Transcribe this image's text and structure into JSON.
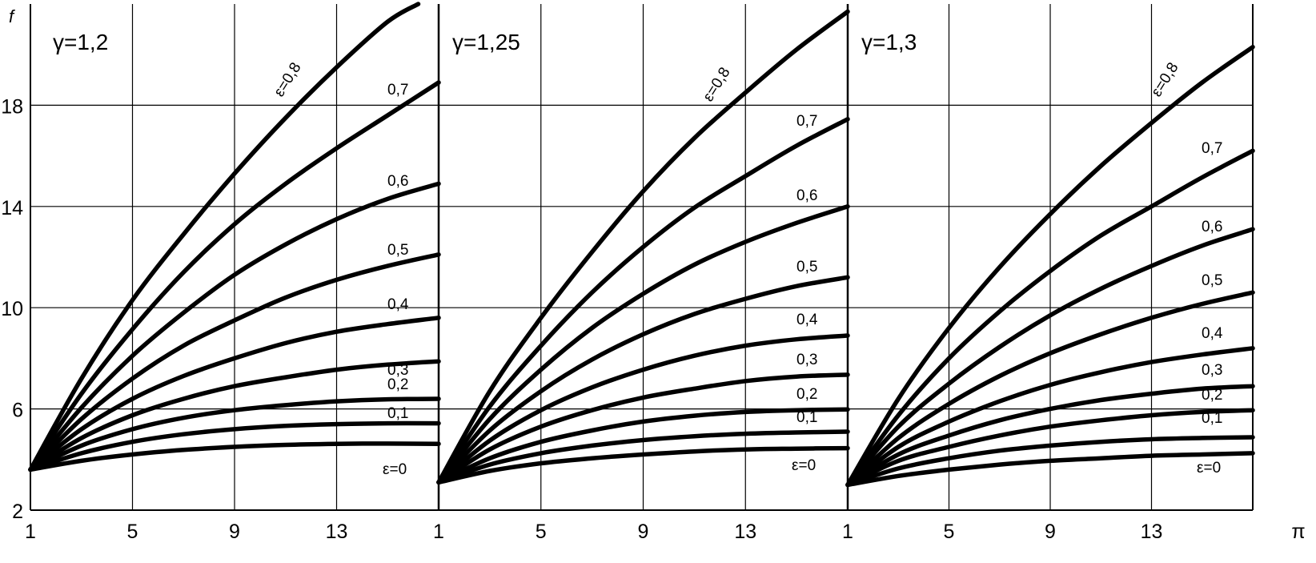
{
  "chart_data": {
    "type": "line",
    "ylabel": "f",
    "xlabel": "π",
    "ylim": [
      2,
      22
    ],
    "y_ticks": [
      2,
      6,
      10,
      14,
      18
    ],
    "x_ticks": [
      1,
      5,
      9,
      13
    ],
    "grid": true,
    "panels": [
      {
        "title": "γ=1,2",
        "xlim": [
          1,
          17
        ],
        "series": [
          {
            "name": "ε=0",
            "label": "ε=0",
            "x": [
              1,
              3,
              5,
              7,
              9,
              11,
              13,
              15,
              17
            ],
            "y": [
              3.6,
              3.95,
              4.2,
              4.38,
              4.5,
              4.58,
              4.62,
              4.63,
              4.62
            ]
          },
          {
            "name": "ε=0,1",
            "label": "0,1",
            "x": [
              1,
              3,
              5,
              7,
              9,
              11,
              13,
              15,
              17
            ],
            "y": [
              3.6,
              4.25,
              4.7,
              5.0,
              5.2,
              5.33,
              5.4,
              5.43,
              5.43
            ]
          },
          {
            "name": "ε=0,2",
            "label": "0,2",
            "x": [
              1,
              3,
              5,
              7,
              9,
              11,
              13,
              15,
              17
            ],
            "y": [
              3.6,
              4.55,
              5.2,
              5.65,
              5.95,
              6.15,
              6.3,
              6.38,
              6.4
            ]
          },
          {
            "name": "ε=0,3",
            "label": "0,3",
            "x": [
              1,
              3,
              5,
              7,
              9,
              11,
              13,
              15,
              17
            ],
            "y": [
              3.6,
              4.85,
              5.75,
              6.4,
              6.9,
              7.25,
              7.55,
              7.75,
              7.88
            ]
          },
          {
            "name": "ε=0,4",
            "label": "0,4",
            "x": [
              1,
              3,
              5,
              7,
              9,
              11,
              13,
              15,
              17
            ],
            "y": [
              3.6,
              5.2,
              6.4,
              7.3,
              8.0,
              8.6,
              9.05,
              9.35,
              9.6
            ]
          },
          {
            "name": "ε=0,5",
            "label": "0,5",
            "x": [
              1,
              3,
              5,
              7,
              9,
              11,
              13,
              15,
              17
            ],
            "y": [
              3.6,
              5.6,
              7.2,
              8.5,
              9.5,
              10.4,
              11.1,
              11.65,
              12.1
            ]
          },
          {
            "name": "ε=0,6",
            "label": "0,6",
            "x": [
              1,
              3,
              5,
              7,
              9,
              11,
              13,
              15,
              17
            ],
            "y": [
              3.6,
              6.05,
              8.1,
              9.8,
              11.3,
              12.5,
              13.5,
              14.3,
              14.9
            ]
          },
          {
            "name": "ε=0,7",
            "label": "0,7",
            "x": [
              1,
              3,
              5,
              7,
              9,
              11,
              13,
              15,
              17
            ],
            "y": [
              3.6,
              6.6,
              9.15,
              11.4,
              13.3,
              14.9,
              16.3,
              17.6,
              18.9
            ]
          },
          {
            "name": "ε=0,8",
            "label": "ε=0,8",
            "x": [
              1,
              3,
              5,
              7,
              9,
              11,
              13,
              15,
              16.2
            ],
            "y": [
              3.6,
              7.2,
              10.3,
              12.9,
              15.3,
              17.5,
              19.5,
              21.3,
              22
            ]
          }
        ]
      },
      {
        "title": "γ=1,25",
        "xlim": [
          1,
          17
        ],
        "series": [
          {
            "name": "ε=0",
            "label": "ε=0",
            "x": [
              1,
              3,
              5,
              7,
              9,
              11,
              13,
              15,
              17
            ],
            "y": [
              3.1,
              3.55,
              3.85,
              4.05,
              4.2,
              4.32,
              4.4,
              4.43,
              4.45
            ]
          },
          {
            "name": "ε=0,1",
            "label": "0,1",
            "x": [
              1,
              3,
              5,
              7,
              9,
              11,
              13,
              15,
              17
            ],
            "y": [
              3.1,
              3.8,
              4.25,
              4.55,
              4.77,
              4.92,
              5.02,
              5.07,
              5.1
            ]
          },
          {
            "name": "ε=0,2",
            "label": "0,2",
            "x": [
              1,
              3,
              5,
              7,
              9,
              11,
              13,
              15,
              17
            ],
            "y": [
              3.1,
              4.05,
              4.7,
              5.15,
              5.5,
              5.73,
              5.88,
              5.95,
              5.98
            ]
          },
          {
            "name": "ε=0,3",
            "label": "0,3",
            "x": [
              1,
              3,
              5,
              7,
              9,
              11,
              13,
              15,
              17
            ],
            "y": [
              3.1,
              4.4,
              5.3,
              5.95,
              6.45,
              6.8,
              7.1,
              7.28,
              7.35
            ]
          },
          {
            "name": "ε=0,4",
            "label": "0,4",
            "x": [
              1,
              3,
              5,
              7,
              9,
              11,
              13,
              15,
              17
            ],
            "y": [
              3.1,
              4.75,
              5.95,
              6.85,
              7.55,
              8.1,
              8.5,
              8.75,
              8.9
            ]
          },
          {
            "name": "ε=0,5",
            "label": "0,5",
            "x": [
              1,
              3,
              5,
              7,
              9,
              11,
              13,
              15,
              17
            ],
            "y": [
              3.1,
              5.15,
              6.7,
              7.95,
              8.95,
              9.75,
              10.35,
              10.85,
              11.2
            ]
          },
          {
            "name": "ε=0,6",
            "label": "0,6",
            "x": [
              1,
              3,
              5,
              7,
              9,
              11,
              13,
              15,
              17
            ],
            "y": [
              3.1,
              5.6,
              7.55,
              9.2,
              10.55,
              11.7,
              12.6,
              13.35,
              14.0
            ]
          },
          {
            "name": "ε=0,7",
            "label": "0,7",
            "x": [
              1,
              3,
              5,
              7,
              9,
              11,
              13,
              15,
              17
            ],
            "y": [
              3.1,
              6.1,
              8.5,
              10.6,
              12.4,
              13.95,
              15.2,
              16.4,
              17.45
            ]
          },
          {
            "name": "ε=0,8",
            "label": "ε=0,8",
            "x": [
              1,
              3,
              5,
              7,
              9,
              11,
              13,
              15,
              17
            ],
            "y": [
              3.1,
              6.7,
              9.6,
              12.2,
              14.6,
              16.7,
              18.5,
              20.2,
              21.7
            ]
          }
        ]
      },
      {
        "title": "γ=1,3",
        "xlim": [
          1,
          17
        ],
        "series": [
          {
            "name": "ε=0",
            "label": "ε=0",
            "x": [
              1,
              3,
              5,
              7,
              9,
              11,
              13,
              15,
              17
            ],
            "y": [
              3.0,
              3.35,
              3.6,
              3.8,
              3.95,
              4.05,
              4.15,
              4.2,
              4.25
            ]
          },
          {
            "name": "ε=0,1",
            "label": "0,1",
            "x": [
              1,
              3,
              5,
              7,
              9,
              11,
              13,
              15,
              17
            ],
            "y": [
              3.0,
              3.65,
              4.05,
              4.35,
              4.55,
              4.7,
              4.8,
              4.85,
              4.88
            ]
          },
          {
            "name": "ε=0,2",
            "label": "0,2",
            "x": [
              1,
              3,
              5,
              7,
              9,
              11,
              13,
              15,
              17
            ],
            "y": [
              3.0,
              3.95,
              4.5,
              4.95,
              5.3,
              5.55,
              5.75,
              5.88,
              5.95
            ]
          },
          {
            "name": "ε=0,3",
            "label": "0,3",
            "x": [
              1,
              3,
              5,
              7,
              9,
              11,
              13,
              15,
              17
            ],
            "y": [
              3.0,
              4.2,
              4.95,
              5.55,
              6.0,
              6.35,
              6.6,
              6.8,
              6.9
            ]
          },
          {
            "name": "ε=0,4",
            "label": "0,4",
            "x": [
              1,
              3,
              5,
              7,
              9,
              11,
              13,
              15,
              17
            ],
            "y": [
              3.0,
              4.5,
              5.5,
              6.3,
              6.95,
              7.45,
              7.85,
              8.15,
              8.4
            ]
          },
          {
            "name": "ε=0,5",
            "label": "0,5",
            "x": [
              1,
              3,
              5,
              7,
              9,
              11,
              13,
              15,
              17
            ],
            "y": [
              3.0,
              4.85,
              6.2,
              7.3,
              8.2,
              8.95,
              9.6,
              10.15,
              10.6
            ]
          },
          {
            "name": "ε=0,6",
            "label": "0,6",
            "x": [
              1,
              3,
              5,
              7,
              9,
              11,
              13,
              15,
              17
            ],
            "y": [
              3.0,
              5.3,
              7.0,
              8.45,
              9.7,
              10.75,
              11.65,
              12.45,
              13.1
            ]
          },
          {
            "name": "ε=0,7",
            "label": "0,7",
            "x": [
              1,
              3,
              5,
              7,
              9,
              11,
              13,
              15,
              17
            ],
            "y": [
              3.0,
              5.75,
              8.0,
              9.85,
              11.45,
              12.85,
              14.0,
              15.15,
              16.2
            ]
          },
          {
            "name": "ε=0,8",
            "label": "ε=0,8",
            "x": [
              1,
              3,
              5,
              7,
              9,
              11,
              13,
              15,
              17
            ],
            "y": [
              3.0,
              6.4,
              9.2,
              11.6,
              13.7,
              15.6,
              17.3,
              18.9,
              20.3
            ]
          }
        ]
      }
    ]
  }
}
